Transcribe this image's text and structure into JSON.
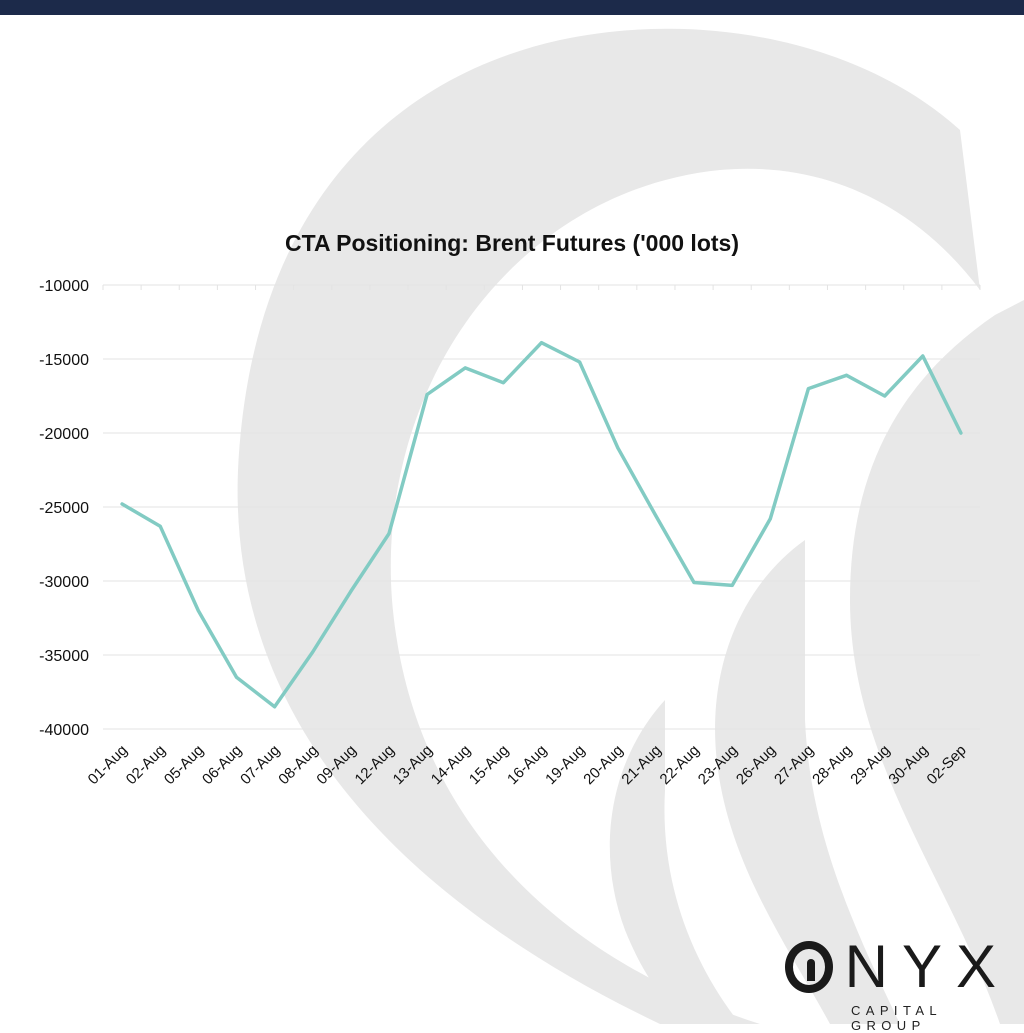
{
  "header": {
    "bar_color": "#1c2a4a"
  },
  "brand": {
    "name_rest": "NYX",
    "subtitle": "CAPITAL GROUP",
    "logo_icon": "onyx-flame-o-icon"
  },
  "colors": {
    "line": "#82cbc3",
    "grid": "#e3e3e3",
    "watermark": "#e8e8e8",
    "text": "#111111"
  },
  "chart_data": {
    "type": "line",
    "title": "CTA Positioning: Brent Futures ('000 lots)",
    "xlabel": "",
    "ylabel": "",
    "ylim": [
      -40000,
      -10000
    ],
    "yticks": [
      -10000,
      -15000,
      -20000,
      -25000,
      -30000,
      -35000,
      -40000
    ],
    "grid": true,
    "legend": "none",
    "categories": [
      "01-Aug",
      "02-Aug",
      "05-Aug",
      "06-Aug",
      "07-Aug",
      "08-Aug",
      "09-Aug",
      "12-Aug",
      "13-Aug",
      "14-Aug",
      "15-Aug",
      "16-Aug",
      "19-Aug",
      "20-Aug",
      "21-Aug",
      "22-Aug",
      "23-Aug",
      "26-Aug",
      "27-Aug",
      "28-Aug",
      "29-Aug",
      "30-Aug",
      "02-Sep"
    ],
    "series": [
      {
        "values": [
          -24800,
          -26300,
          -32000,
          -36500,
          -38500,
          -34800,
          -30700,
          -26800,
          -17400,
          -15600,
          -16600,
          -13900,
          -15200,
          -21000,
          -25600,
          -30100,
          -30300,
          -25800,
          -17000,
          -16100,
          -17500,
          -14800,
          -20000
        ]
      }
    ]
  }
}
